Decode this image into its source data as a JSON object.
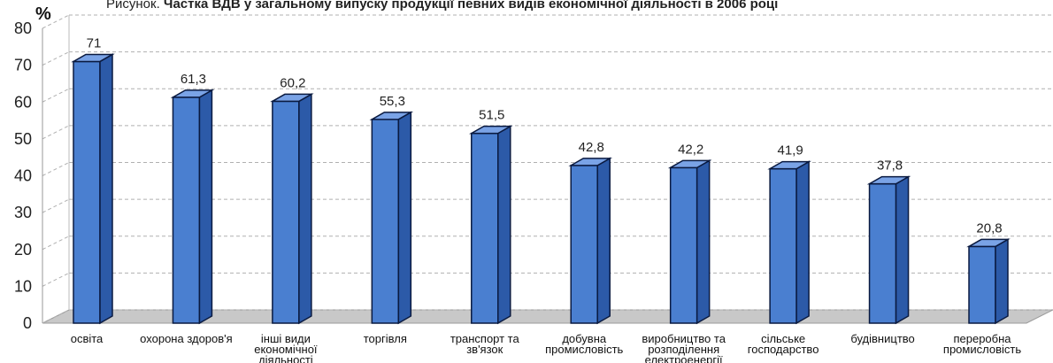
{
  "caption": {
    "prefix": "Рисунок.",
    "title": "Частка ВДВ у загальному випуску продукції певних видів економічної діяльності в 2006 році"
  },
  "chart_data": {
    "type": "bar",
    "unit_label": "%",
    "categories": [
      "освіта",
      "охорона здоров'я",
      "інші види економічної діяльності",
      "торгівля",
      "транспорт та зв'язок",
      "добувна промисловість",
      "виробництво та розподілення електроенергії",
      "сільське господарство",
      "будівництво",
      "переробна промисловість"
    ],
    "category_lines": [
      [
        "освіта"
      ],
      [
        "охорона здоров'я"
      ],
      [
        "інші види",
        "економічної",
        "діяльності"
      ],
      [
        "торгівля"
      ],
      [
        "транспорт та",
        "зв'язок"
      ],
      [
        "добувна",
        "промисловість"
      ],
      [
        "виробництво та",
        "розподілення",
        "електроенергії"
      ],
      [
        "сільське",
        "господарство"
      ],
      [
        "будівництво"
      ],
      [
        "переробна",
        "промисловість"
      ]
    ],
    "values": [
      71,
      61.3,
      60.2,
      55.3,
      51.5,
      42.8,
      42.2,
      41.9,
      37.8,
      20.8
    ],
    "value_labels": [
      "71",
      "61,3",
      "60,2",
      "55,3",
      "51,5",
      "42,8",
      "42,2",
      "41,9",
      "37,8",
      "20,8"
    ],
    "ylim": [
      0,
      80
    ],
    "yticks": [
      0,
      10,
      20,
      30,
      40,
      50,
      60,
      70,
      80
    ],
    "grid": true,
    "style": "3d-bar",
    "colors": {
      "bar_front": "#4a7fd0",
      "bar_side": "#2c5aa8",
      "bar_top": "#7aa3e6",
      "bar_outline": "#0a1a40",
      "grid": "#b0b0b0",
      "floor": "#c8c8c8"
    }
  }
}
